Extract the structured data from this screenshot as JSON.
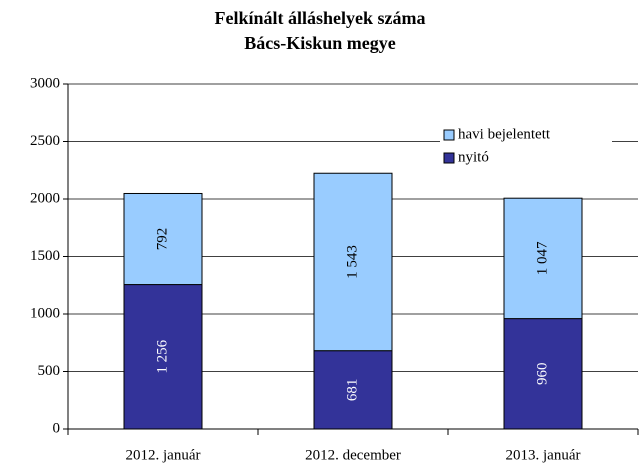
{
  "chart_data": {
    "type": "stacked_bar",
    "title": [
      "Felkínált álláshelyek száma",
      "Bács-Kiskun megye"
    ],
    "categories": [
      "2012. január",
      "2012. december",
      "2013. január"
    ],
    "series": [
      {
        "name": "nyitó",
        "color": "#333399",
        "label_color": "#ffffff",
        "values": [
          1256,
          681,
          960
        ],
        "value_labels": [
          "1 256",
          "681",
          "960"
        ]
      },
      {
        "name": "havi bejelentett",
        "color": "#99ccff",
        "label_color": "#000000",
        "values": [
          792,
          1543,
          1047
        ],
        "value_labels": [
          "792",
          "1 543",
          "1 047"
        ]
      }
    ],
    "ylim": [
      0,
      3000
    ],
    "yticks": [
      0,
      500,
      1000,
      1500,
      2000,
      2500,
      3000
    ],
    "grid": true,
    "legend": "top-right"
  }
}
